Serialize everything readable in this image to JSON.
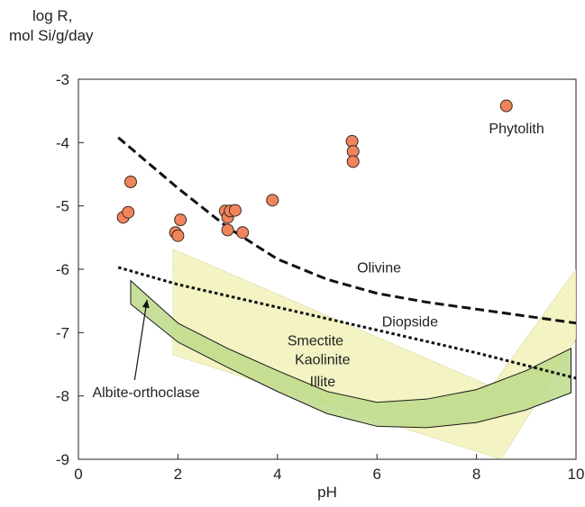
{
  "chart_data": {
    "type": "scatter",
    "ylabel_line1": "log R,",
    "ylabel_line2": "mol Si/g/day",
    "xlabel": "pH",
    "xlim": [
      0,
      10
    ],
    "ylim": [
      -9,
      -3
    ],
    "xticks": [
      "0",
      "2",
      "4",
      "6",
      "8",
      "10"
    ],
    "yticks": [
      "-3",
      "-4",
      "-5",
      "-6",
      "-7",
      "-8",
      "-9"
    ],
    "grid": false,
    "series": [
      {
        "name": "Phytolith",
        "kind": "points",
        "color": "#f0845c",
        "x": [
          0.9,
          1.0,
          1.05,
          1.95,
          2.0,
          2.05,
          2.95,
          3.0,
          3.0,
          3.05,
          3.15,
          3.3,
          3.9,
          5.5,
          5.52,
          5.52,
          8.6
        ],
        "y": [
          -5.18,
          -5.1,
          -4.62,
          -5.42,
          -5.47,
          -5.22,
          -5.08,
          -5.18,
          -5.38,
          -5.08,
          -5.07,
          -5.42,
          -4.91,
          -3.98,
          -4.14,
          -4.3,
          -3.42
        ]
      },
      {
        "name": "Olivine",
        "kind": "dashed-line",
        "color": "#111111",
        "x": [
          0.8,
          2,
          3,
          4,
          5,
          6,
          7,
          8,
          9,
          10
        ],
        "y": [
          -3.92,
          -4.72,
          -5.34,
          -5.84,
          -6.16,
          -6.38,
          -6.52,
          -6.63,
          -6.74,
          -6.85
        ]
      },
      {
        "name": "Diopside",
        "kind": "dotted-line",
        "color": "#111111",
        "x": [
          0.8,
          2,
          4,
          6,
          8,
          10
        ],
        "y": [
          -5.97,
          -6.24,
          -6.6,
          -6.96,
          -7.32,
          -7.72
        ]
      },
      {
        "name": "Smectite Kaolinite Illite",
        "kind": "band",
        "color": "#f2f1b8",
        "x": [
          1.9,
          8.3,
          10,
          10,
          8.5,
          1.9
        ],
        "y": [
          -5.68,
          -7.85,
          -6.0,
          -7.1,
          -9.0,
          -7.35
        ]
      },
      {
        "name": "Albite-orthoclase",
        "kind": "band",
        "color": "#bcd98a",
        "x_upper": [
          1.05,
          2,
          3,
          4,
          5,
          6,
          7,
          8,
          9,
          9.9
        ],
        "y_upper": [
          -6.18,
          -6.85,
          -7.25,
          -7.6,
          -7.93,
          -8.1,
          -8.05,
          -7.9,
          -7.6,
          -7.25
        ],
        "x_lower": [
          1.05,
          2,
          3,
          4,
          5,
          6,
          7,
          8,
          9,
          9.9
        ],
        "y_lower": [
          -6.55,
          -7.15,
          -7.55,
          -7.93,
          -8.28,
          -8.48,
          -8.5,
          -8.42,
          -8.22,
          -7.95
        ]
      }
    ],
    "labels": {
      "phytolith": "Phytolith",
      "olivine": "Olivine",
      "diopside": "Diopside",
      "smectite": "Smectite",
      "kaolinite": "Kaolinite",
      "illite": "Illite",
      "albite": "Albite-orthoclase"
    }
  }
}
